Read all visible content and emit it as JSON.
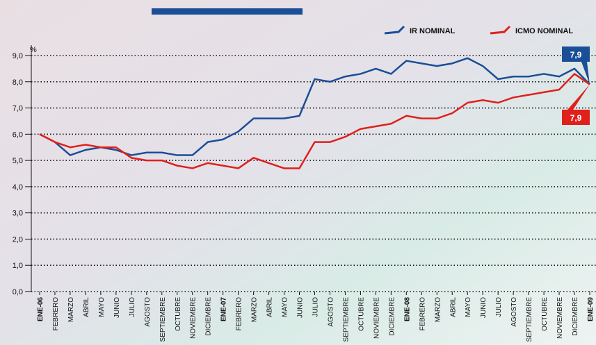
{
  "chart_data": {
    "type": "line",
    "y_unit": "%",
    "categories": [
      "ENE-06",
      "FEBRERO",
      "MARZO",
      "ABRIL",
      "MAYO",
      "JUNIO",
      "JULIO",
      "AGOSTO",
      "SEPTIEMBRE",
      "OCTUBRE",
      "NOVIEMBRE",
      "DICIEMBRE",
      "ENE-07",
      "FEBRERO",
      "MARZO",
      "ABRIL",
      "MAYO",
      "JUNIO",
      "JULIO",
      "AGOSTO",
      "SEPTIEMBRE",
      "OCTUBRE",
      "NOVIEMBRE",
      "DICIEMBRE",
      "ENE-08",
      "FEBRERO",
      "MARZO",
      "ABRIL",
      "MAYO",
      "JUNIO",
      "JULIO",
      "AGOSTO",
      "SEPTIEMBRE",
      "OCTUBRE",
      "NOVIEMBRE",
      "DICIEMBRE",
      "ENE-09"
    ],
    "series": [
      {
        "name": "IR NOMINAL",
        "color": "#1a4e96",
        "values": [
          6.0,
          5.7,
          5.2,
          5.4,
          5.5,
          5.4,
          5.2,
          5.3,
          5.3,
          5.2,
          5.2,
          5.7,
          5.8,
          6.1,
          6.6,
          6.6,
          6.6,
          6.7,
          8.1,
          8.0,
          8.2,
          8.3,
          8.5,
          8.3,
          8.8,
          8.7,
          8.6,
          8.7,
          8.9,
          8.6,
          8.1,
          8.2,
          8.2,
          8.3,
          8.2,
          8.5,
          7.9
        ]
      },
      {
        "name": "ICMO NOMINAL",
        "color": "#e0201b",
        "values": [
          6.0,
          5.7,
          5.5,
          5.6,
          5.5,
          5.5,
          5.1,
          5.0,
          5.0,
          4.8,
          4.7,
          4.9,
          4.8,
          4.7,
          5.1,
          4.9,
          4.7,
          4.7,
          5.7,
          5.7,
          5.9,
          6.2,
          6.3,
          6.4,
          6.7,
          6.6,
          6.6,
          6.8,
          7.2,
          7.3,
          7.2,
          7.4,
          7.5,
          7.6,
          7.7,
          8.3,
          7.9
        ]
      }
    ],
    "annotations": [
      {
        "label": "7,9",
        "value": 7.9
      },
      {
        "label": "7,9",
        "value": 7.9
      }
    ],
    "ylim": [
      0,
      9
    ],
    "yticks": [
      {
        "value": 0,
        "label": "0,0"
      },
      {
        "value": 1,
        "label": "1,0"
      },
      {
        "value": 2,
        "label": "2,0"
      },
      {
        "value": 3,
        "label": "3,0"
      },
      {
        "value": 4,
        "label": "4,0"
      },
      {
        "value": 5,
        "label": "5,0"
      },
      {
        "value": 6,
        "label": "6,0"
      },
      {
        "value": 7,
        "label": "7,0"
      },
      {
        "value": 8,
        "label": "8,0"
      },
      {
        "value": 9,
        "label": "9,0"
      }
    ],
    "grid": true,
    "legend": "top-right"
  }
}
